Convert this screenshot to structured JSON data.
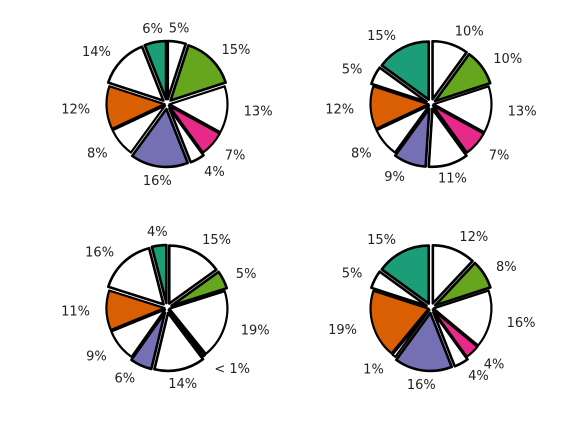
{
  "colors": {
    "white": "#ffffff",
    "teal": "#1b9e77",
    "green": "#66a61e",
    "pink": "#e7298a",
    "purple": "#7570b3",
    "orange": "#d95f02",
    "outline": "#000000"
  },
  "chart_data": [
    {
      "type": "pie",
      "position": "top-left",
      "slices": [
        {
          "label": "5%",
          "value": 5,
          "exploded": true,
          "fill": "white"
        },
        {
          "label": "15%",
          "value": 15,
          "exploded": true,
          "fill": "green"
        },
        {
          "label": "13%",
          "value": 13,
          "exploded": false,
          "fill": "white"
        },
        {
          "label": "7%",
          "value": 7,
          "exploded": false,
          "fill": "pink"
        },
        {
          "label": "4%",
          "value": 4,
          "exploded": true,
          "fill": "white"
        },
        {
          "label": "16%",
          "value": 16,
          "exploded": true,
          "fill": "purple"
        },
        {
          "label": "8%",
          "value": 8,
          "exploded": false,
          "fill": "white"
        },
        {
          "label": "12%",
          "value": 12,
          "exploded": false,
          "fill": "orange"
        },
        {
          "label": "14%",
          "value": 14,
          "exploded": true,
          "fill": "white"
        },
        {
          "label": "6%",
          "value": 6,
          "exploded": true,
          "fill": "teal"
        }
      ]
    },
    {
      "type": "pie",
      "position": "top-right",
      "slices": [
        {
          "label": "10%",
          "value": 10,
          "exploded": true,
          "fill": "white"
        },
        {
          "label": "10%",
          "value": 10,
          "exploded": true,
          "fill": "green"
        },
        {
          "label": "13%",
          "value": 13,
          "exploded": false,
          "fill": "white"
        },
        {
          "label": "7%",
          "value": 7,
          "exploded": false,
          "fill": "pink"
        },
        {
          "label": "11%",
          "value": 11,
          "exploded": true,
          "fill": "white"
        },
        {
          "label": "9%",
          "value": 9,
          "exploded": true,
          "fill": "purple"
        },
        {
          "label": "8%",
          "value": 8,
          "exploded": false,
          "fill": "white"
        },
        {
          "label": "12%",
          "value": 12,
          "exploded": false,
          "fill": "orange"
        },
        {
          "label": "5%",
          "value": 5,
          "exploded": true,
          "fill": "white"
        },
        {
          "label": "15%",
          "value": 15,
          "exploded": true,
          "fill": "teal"
        }
      ]
    },
    {
      "type": "pie",
      "position": "bottom-left",
      "slices": [
        {
          "label": "15%",
          "value": 15,
          "exploded": true,
          "fill": "white"
        },
        {
          "label": "5%",
          "value": 5,
          "exploded": true,
          "fill": "green"
        },
        {
          "label": "19%",
          "value": 19,
          "exploded": false,
          "fill": "white"
        },
        {
          "label": "< 1%",
          "value": 0.5,
          "exploded": false,
          "fill": "pink"
        },
        {
          "label": "14%",
          "value": 14,
          "exploded": true,
          "fill": "white"
        },
        {
          "label": "6%",
          "value": 6,
          "exploded": true,
          "fill": "purple"
        },
        {
          "label": "9%",
          "value": 9,
          "exploded": false,
          "fill": "white"
        },
        {
          "label": "11%",
          "value": 11,
          "exploded": false,
          "fill": "orange"
        },
        {
          "label": "16%",
          "value": 16,
          "exploded": true,
          "fill": "white"
        },
        {
          "label": "4%",
          "value": 4,
          "exploded": true,
          "fill": "teal"
        }
      ]
    },
    {
      "type": "pie",
      "position": "bottom-right",
      "slices": [
        {
          "label": "12%",
          "value": 12,
          "exploded": true,
          "fill": "white"
        },
        {
          "label": "8%",
          "value": 8,
          "exploded": true,
          "fill": "green"
        },
        {
          "label": "16%",
          "value": 16,
          "exploded": false,
          "fill": "white"
        },
        {
          "label": "4%",
          "value": 4,
          "exploded": false,
          "fill": "pink"
        },
        {
          "label": "4%",
          "value": 4,
          "exploded": true,
          "fill": "white"
        },
        {
          "label": "16%",
          "value": 16,
          "exploded": true,
          "fill": "purple"
        },
        {
          "label": "1%",
          "value": 1,
          "exploded": false,
          "fill": "white"
        },
        {
          "label": "19%",
          "value": 19,
          "exploded": false,
          "fill": "orange"
        },
        {
          "label": "5%",
          "value": 5,
          "exploded": true,
          "fill": "white"
        },
        {
          "label": "15%",
          "value": 15,
          "exploded": true,
          "fill": "teal"
        }
      ]
    }
  ]
}
